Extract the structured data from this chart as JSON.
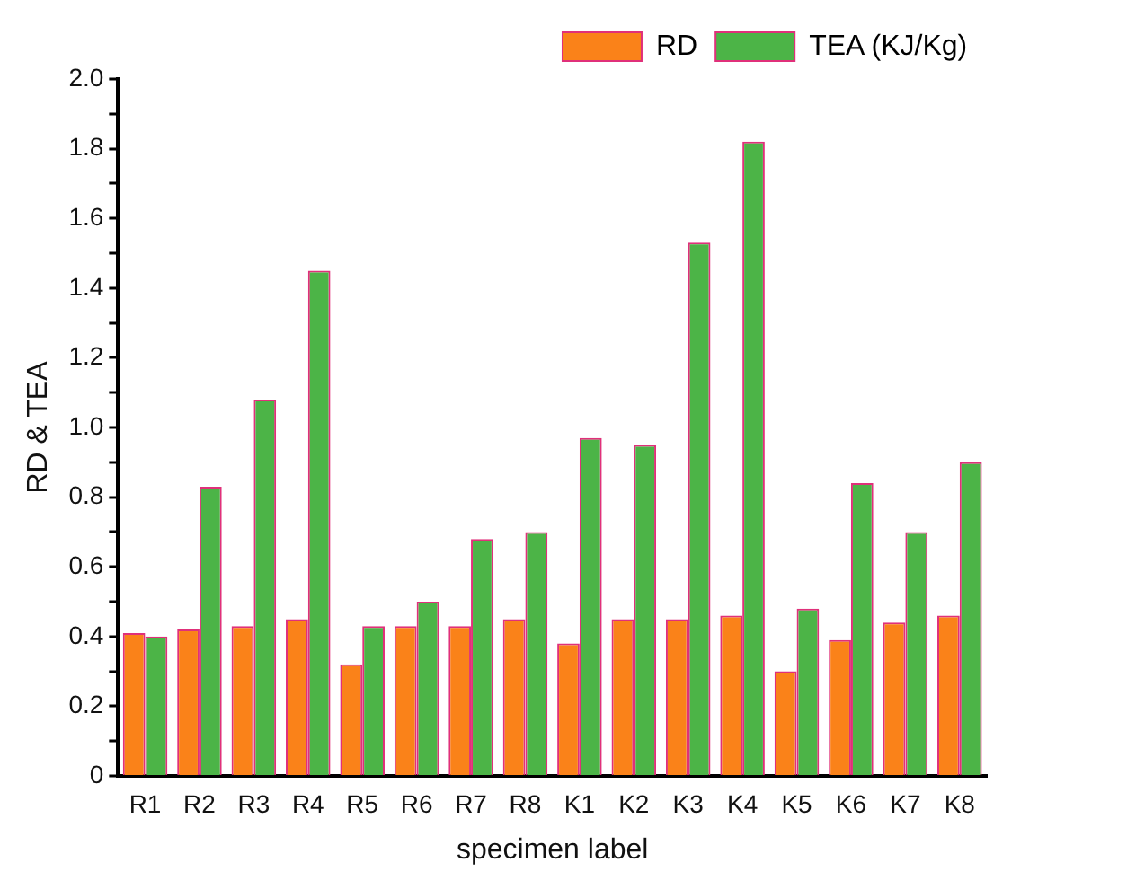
{
  "chart_data": {
    "type": "bar",
    "xlabel": "specimen label",
    "ylabel": "RD & TEA",
    "categories": [
      "R1",
      "R2",
      "R3",
      "R4",
      "R5",
      "R6",
      "R7",
      "R8",
      "K1",
      "K2",
      "K3",
      "K4",
      "K5",
      "K6",
      "K7",
      "K8"
    ],
    "series": [
      {
        "name": "RD",
        "color": "#fa8219",
        "values": [
          0.41,
          0.42,
          0.43,
          0.45,
          0.32,
          0.43,
          0.43,
          0.45,
          0.38,
          0.45,
          0.45,
          0.46,
          0.3,
          0.39,
          0.44,
          0.46
        ]
      },
      {
        "name": "TEA (KJ/Kg)",
        "color": "#4cb447",
        "values": [
          0.4,
          0.83,
          1.08,
          1.45,
          0.43,
          0.5,
          0.68,
          0.7,
          0.97,
          0.95,
          1.53,
          1.82,
          0.48,
          0.84,
          0.7,
          0.9
        ]
      }
    ],
    "ylim": [
      0,
      2.0
    ],
    "yticks": [
      0,
      {
        "value": 0.1,
        "label": null
      },
      0.2,
      {
        "value": 0.3,
        "label": null
      },
      0.4,
      {
        "value": 0.5,
        "label": null
      },
      0.6,
      {
        "value": 0.7,
        "label": null
      },
      0.8,
      {
        "value": 0.9,
        "label": null
      },
      {
        "value": 1.0,
        "label": "1.0"
      },
      {
        "value": 1.1,
        "label": null
      },
      1.2,
      {
        "value": 1.3,
        "label": null
      },
      1.4,
      {
        "value": 1.5,
        "label": null
      },
      1.6,
      {
        "value": 1.7,
        "label": null
      },
      1.8,
      {
        "value": 1.9,
        "label": null
      },
      {
        "value": 2.0,
        "label": "2.0"
      }
    ],
    "grid": false,
    "legend": "top right"
  }
}
